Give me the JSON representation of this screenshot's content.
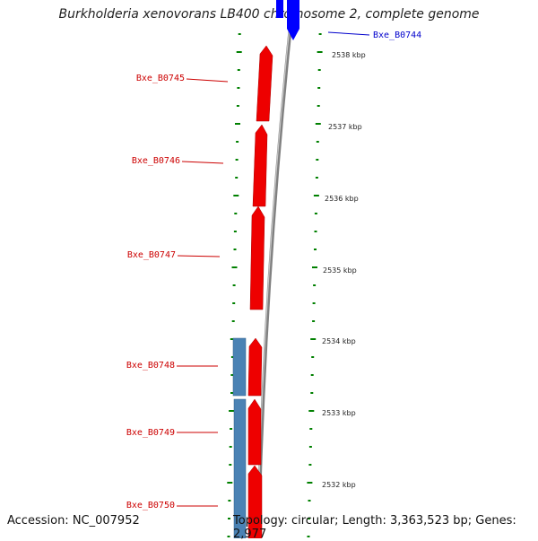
{
  "title": "Burkholderia xenovorans LB400 chromosome 2, complete genome",
  "footer": {
    "accession": "Accession: NC_007952",
    "summary": "Topology: circular; Length: 3,363,523 bp; Genes: 2,977"
  },
  "colors": {
    "forward_gene": "#ff0000",
    "reverse_gene": "#0000ff",
    "other_strand": "#4682b4",
    "backbone": "#808080",
    "ticks": "#008000",
    "label_fwd": "#cc0000",
    "label_rev": "#0000cc"
  },
  "ruler": {
    "labels": [
      "2538 kbp",
      "2537 kbp",
      "2536 kbp",
      "2535 kbp",
      "2534 kbp",
      "2533 kbp",
      "2532 kbp"
    ]
  },
  "genes": [
    {
      "label": "Bxe_B0744",
      "strand": "reverse"
    },
    {
      "label": "Bxe_B0745",
      "strand": "forward"
    },
    {
      "label": "Bxe_B0746",
      "strand": "forward"
    },
    {
      "label": "Bxe_B0747",
      "strand": "forward"
    },
    {
      "label": "Bxe_B0748",
      "strand": "forward"
    },
    {
      "label": "Bxe_B0749",
      "strand": "forward"
    },
    {
      "label": "Bxe_B0750",
      "strand": "forward"
    }
  ]
}
